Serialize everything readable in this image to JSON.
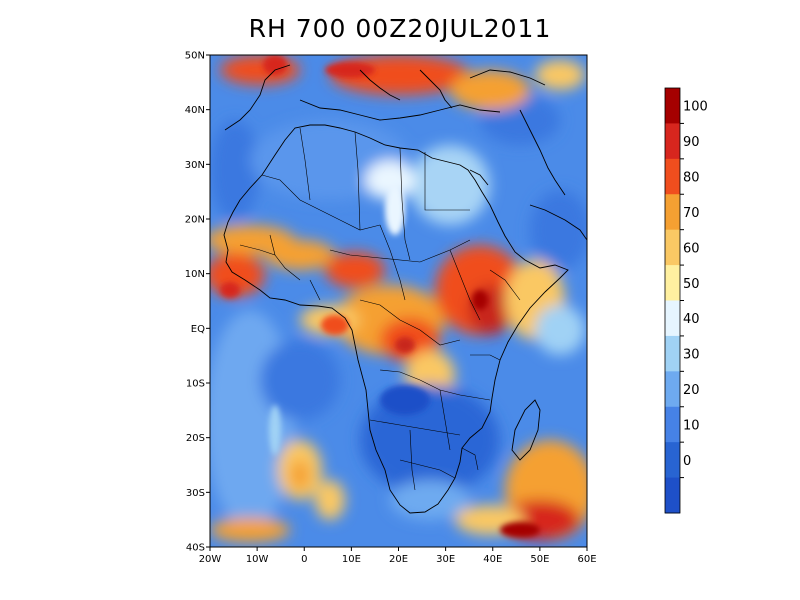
{
  "title": "RH 700 00Z20JUL2011",
  "map": {
    "variable": "RH",
    "level": "700",
    "time": "00Z20JUL2011",
    "lon_range": [
      -20,
      60
    ],
    "lat_range": [
      -40,
      50
    ],
    "lat_ticks": [
      "50N",
      "40N",
      "30N",
      "20N",
      "10N",
      "EQ",
      "10S",
      "20S",
      "30S",
      "40S"
    ],
    "lon_ticks": [
      "20W",
      "10W",
      "0",
      "10E",
      "20E",
      "30E",
      "40E",
      "50E",
      "60E"
    ]
  },
  "colorbar": {
    "labels": [
      "100",
      "90",
      "80",
      "70",
      "60",
      "50",
      "40",
      "30",
      "20",
      "10",
      "0"
    ],
    "colors": [
      "#a50000",
      "#d7261e",
      "#f04e1e",
      "#f5a032",
      "#fac864",
      "#fff0a0",
      "#e6f5ff",
      "#a0d2f5",
      "#6eaaf0",
      "#4682e6",
      "#2864d2",
      "#1e50c8"
    ]
  }
}
